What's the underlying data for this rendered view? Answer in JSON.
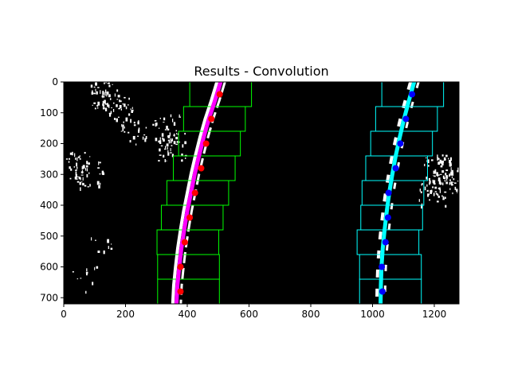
{
  "chart_data": {
    "type": "scatter",
    "title": "Results - Convolution",
    "xlabel": "",
    "ylabel": "",
    "xlim": [
      0,
      1280
    ],
    "ylim": [
      720,
      0
    ],
    "x_ticks": [
      0,
      200,
      400,
      600,
      800,
      1000,
      1200
    ],
    "y_ticks": [
      0,
      100,
      200,
      300,
      400,
      500,
      600,
      700
    ],
    "x_tick_labels": [
      "0",
      "200",
      "400",
      "600",
      "800",
      "1000",
      "1200"
    ],
    "y_tick_labels": [
      "0",
      "100",
      "200",
      "300",
      "400",
      "500",
      "600",
      "700"
    ],
    "grid": false,
    "legend": "none",
    "background_color": "#000000",
    "lane_pixel_color": "#ffffff",
    "left_lane": {
      "fit_color": "#ff00ff",
      "point_color": "#ff0000",
      "window_color": "#00ff00",
      "fit_x": [
        508,
        490,
        470,
        453,
        438,
        424,
        412,
        400,
        390,
        381,
        374,
        368,
        365
      ],
      "fit_y": [
        0,
        60,
        120,
        180,
        240,
        300,
        360,
        420,
        480,
        540,
        600,
        660,
        720
      ],
      "points": [
        [
          505,
          40
        ],
        [
          478,
          120
        ],
        [
          461,
          200
        ],
        [
          445,
          280
        ],
        [
          425,
          360
        ],
        [
          408,
          440
        ],
        [
          392,
          520
        ],
        [
          378,
          600
        ],
        [
          378,
          680
        ]
      ],
      "windows": [
        [
          408,
          608,
          0,
          80
        ],
        [
          388,
          588,
          80,
          160
        ],
        [
          372,
          572,
          160,
          240
        ],
        [
          355,
          555,
          240,
          320
        ],
        [
          334,
          534,
          320,
          400
        ],
        [
          316,
          516,
          400,
          480
        ],
        [
          302,
          502,
          480,
          560
        ],
        [
          304,
          504,
          560,
          640
        ],
        [
          304,
          504,
          640,
          720
        ]
      ]
    },
    "right_lane": {
      "fit_color": "#00ffff",
      "point_color": "#0000ff",
      "window_color": "#00ffff",
      "fit_x": [
        1135,
        1118,
        1102,
        1088,
        1075,
        1064,
        1054,
        1046,
        1039,
        1033,
        1029,
        1027,
        1026
      ],
      "fit_y": [
        0,
        60,
        120,
        180,
        240,
        300,
        360,
        420,
        480,
        540,
        600,
        660,
        720
      ],
      "points": [
        [
          1128,
          40
        ],
        [
          1108,
          120
        ],
        [
          1090,
          200
        ],
        [
          1075,
          280
        ],
        [
          1052,
          360
        ],
        [
          1050,
          440
        ],
        [
          1042,
          520
        ],
        [
          1030,
          600
        ],
        [
          1032,
          680
        ]
      ],
      "windows": [
        [
          1030,
          1230,
          0,
          80
        ],
        [
          1010,
          1210,
          80,
          160
        ],
        [
          994,
          1194,
          160,
          240
        ],
        [
          978,
          1178,
          240,
          320
        ],
        [
          966,
          1166,
          320,
          400
        ],
        [
          962,
          1162,
          400,
          480
        ],
        [
          950,
          1150,
          480,
          560
        ],
        [
          958,
          1158,
          560,
          640
        ],
        [
          958,
          1158,
          640,
          720
        ]
      ]
    }
  }
}
